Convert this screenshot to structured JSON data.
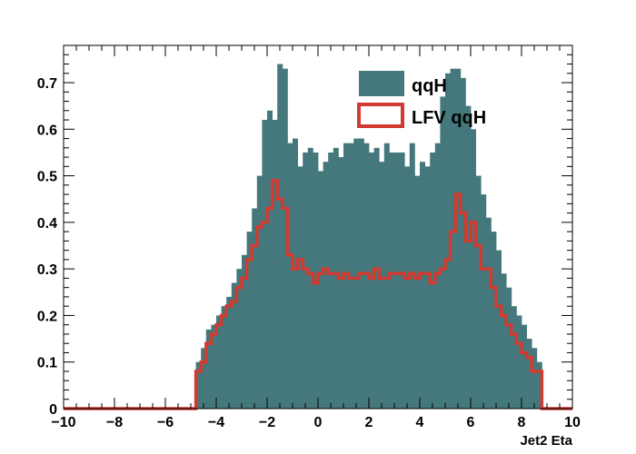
{
  "chart_data": {
    "type": "bar",
    "xlabel": "Jet2 Eta",
    "ylabel": "",
    "xlim": [
      -10,
      10
    ],
    "ylim": [
      0,
      0.78
    ],
    "bin_width": 0.2,
    "x_ticks": [
      -10,
      -8,
      -6,
      -4,
      -2,
      0,
      2,
      4,
      6,
      8,
      10
    ],
    "x_tick_labels": [
      "−10",
      "−8",
      "−6",
      "−4",
      "−2",
      "0",
      "2",
      "4",
      "6",
      "8",
      "10"
    ],
    "y_ticks": [
      0,
      0.1,
      0.2,
      0.3,
      0.4,
      0.5,
      0.6,
      0.7
    ],
    "y_tick_labels": [
      "0",
      "0.1",
      "0.2",
      "0.3",
      "0.4",
      "0.5",
      "0.6",
      "0.7"
    ],
    "legend_position": "top-right",
    "series": [
      {
        "name": "qqH",
        "style": "filled",
        "color": "#45787c",
        "x_start": -4.8,
        "values": [
          0.1,
          0.13,
          0.17,
          0.18,
          0.2,
          0.22,
          0.24,
          0.27,
          0.3,
          0.33,
          0.38,
          0.43,
          0.5,
          0.62,
          0.64,
          0.62,
          0.74,
          0.73,
          0.57,
          0.58,
          0.52,
          0.55,
          0.56,
          0.55,
          0.51,
          0.53,
          0.55,
          0.56,
          0.54,
          0.57,
          0.57,
          0.58,
          0.58,
          0.57,
          0.55,
          0.56,
          0.53,
          0.57,
          0.55,
          0.55,
          0.55,
          0.52,
          0.57,
          0.5,
          0.53,
          0.52,
          0.55,
          0.57,
          0.67,
          0.72,
          0.73,
          0.73,
          0.71,
          0.65,
          0.6,
          0.5,
          0.46,
          0.41,
          0.38,
          0.34,
          0.29,
          0.26,
          0.22,
          0.2,
          0.18,
          0.15,
          0.13,
          0.1
        ]
      },
      {
        "name": "LFV qqH",
        "style": "outline",
        "color": "#d13a30",
        "x_start": -4.8,
        "values": [
          0.08,
          0.1,
          0.14,
          0.16,
          0.18,
          0.2,
          0.22,
          0.23,
          0.26,
          0.28,
          0.32,
          0.35,
          0.39,
          0.4,
          0.43,
          0.49,
          0.45,
          0.43,
          0.33,
          0.3,
          0.32,
          0.3,
          0.29,
          0.27,
          0.29,
          0.3,
          0.29,
          0.29,
          0.28,
          0.29,
          0.28,
          0.28,
          0.29,
          0.29,
          0.28,
          0.3,
          0.28,
          0.28,
          0.29,
          0.29,
          0.29,
          0.28,
          0.29,
          0.28,
          0.29,
          0.29,
          0.27,
          0.29,
          0.3,
          0.32,
          0.38,
          0.46,
          0.42,
          0.36,
          0.4,
          0.35,
          0.3,
          0.3,
          0.26,
          0.22,
          0.2,
          0.18,
          0.16,
          0.14,
          0.12,
          0.11,
          0.08,
          0.08
        ]
      }
    ]
  }
}
